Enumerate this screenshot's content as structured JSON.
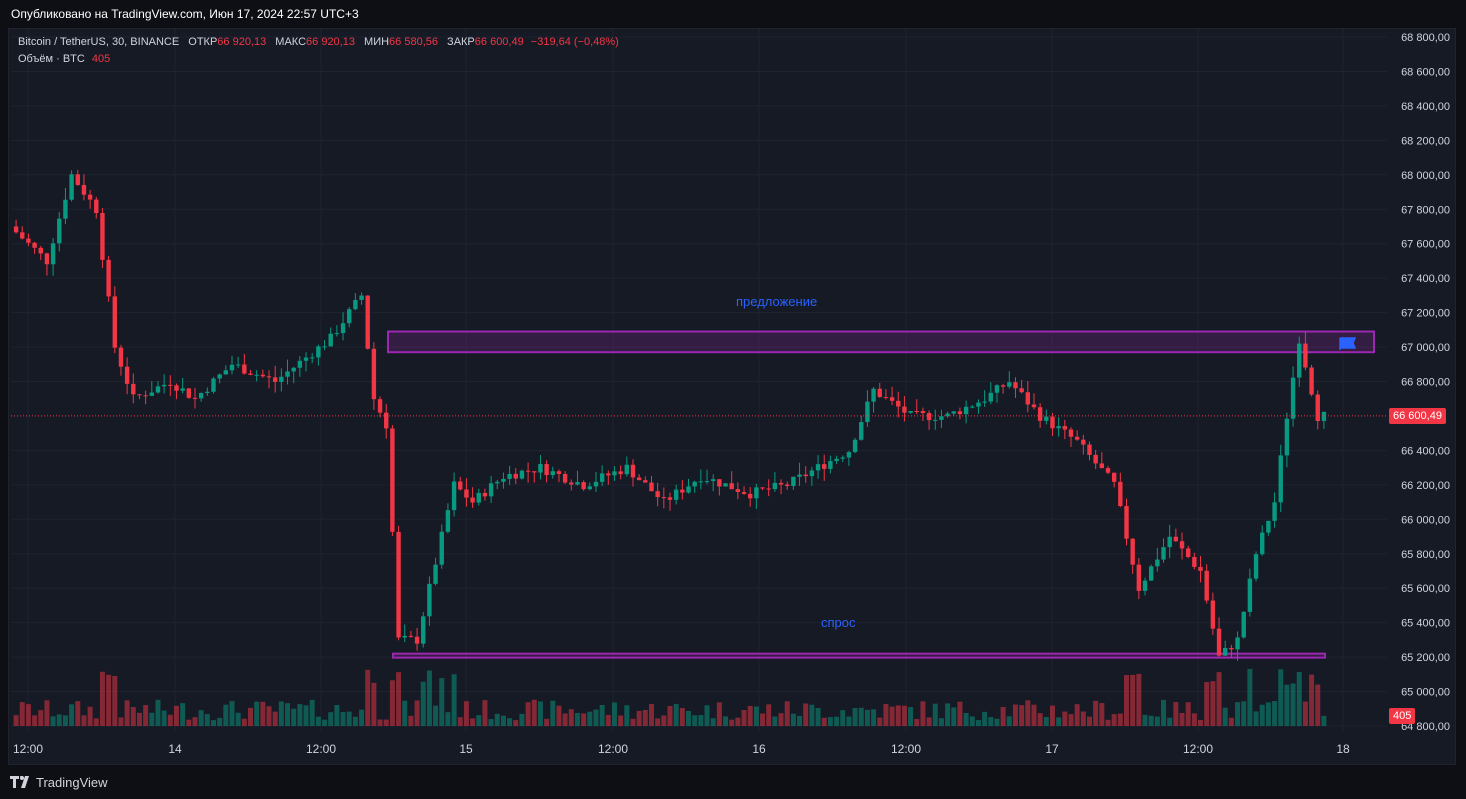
{
  "header": {
    "published": "Опубликовано на TradingView.com, Июн 17, 2024 22:57 UTC+3"
  },
  "legend": {
    "symbol": "Bitcoin / TetherUS, 30, BINANCE",
    "open_label": "ОТКР",
    "open": "66 920,13",
    "high_label": "МАКС",
    "high": "66 920,13",
    "low_label": "МИН",
    "low": "66 580,56",
    "close_label": "ЗАКР",
    "close": "66 600,49",
    "change": "−319,64 (−0,48%)",
    "volume_label": "Объём · BTC",
    "volume_value": "405"
  },
  "annotations": {
    "supply": "предложение",
    "demand": "спрос"
  },
  "price_tags": {
    "last_price": "66 600,49",
    "last_volume": "405"
  },
  "footer": {
    "brand": "TradingView"
  },
  "colors": {
    "up": "#089981",
    "down": "#f23645",
    "zone": "#9c27b0",
    "bg": "#161a25"
  },
  "chart_data": {
    "type": "candlestick",
    "y_tick_labels": [
      "68 800,00",
      "68 600,00",
      "68 400,00",
      "68 200,00",
      "68 000,00",
      "67 800,00",
      "67 600,00",
      "67 400,00",
      "67 200,00",
      "67 000,00",
      "66 800,00",
      "66 400,00",
      "66 200,00",
      "66 000,00",
      "65 800,00",
      "65 600,00",
      "65 400,00",
      "65 200,00",
      "65 000,00",
      "64 800,00"
    ],
    "y_ticks": [
      68800,
      68600,
      68400,
      68200,
      68000,
      67800,
      67600,
      67400,
      67200,
      67000,
      66800,
      66400,
      66200,
      66000,
      65800,
      65600,
      65400,
      65200,
      65000,
      64800
    ],
    "x_tick_labels": [
      "12:00",
      "14",
      "12:00",
      "15",
      "12:00",
      "16",
      "12:00",
      "17",
      "12:00",
      "18"
    ],
    "ylim": [
      64760,
      68880
    ],
    "zones": [
      {
        "label": "предложение",
        "low": 66970,
        "high": 67090
      },
      {
        "label": "спрос",
        "low": 65200,
        "high": 65220
      }
    ],
    "last_close": 66600.49,
    "keypoints": [
      [
        0,
        67700
      ],
      [
        6,
        67500
      ],
      [
        10,
        68000
      ],
      [
        14,
        67800
      ],
      [
        17,
        67000
      ],
      [
        20,
        66700
      ],
      [
        26,
        66800
      ],
      [
        30,
        66700
      ],
      [
        36,
        66900
      ],
      [
        43,
        66800
      ],
      [
        52,
        67050
      ],
      [
        57,
        67300
      ],
      [
        59,
        66700
      ],
      [
        61,
        66550
      ],
      [
        63,
        65300
      ],
      [
        66,
        65300
      ],
      [
        68,
        65600
      ],
      [
        70,
        65900
      ],
      [
        72,
        66200
      ],
      [
        75,
        66100
      ],
      [
        80,
        66250
      ],
      [
        86,
        66300
      ],
      [
        93,
        66200
      ],
      [
        100,
        66300
      ],
      [
        106,
        66100
      ],
      [
        112,
        66250
      ],
      [
        120,
        66150
      ],
      [
        126,
        66200
      ],
      [
        131,
        66300
      ],
      [
        136,
        66400
      ],
      [
        140,
        66750
      ],
      [
        146,
        66600
      ],
      [
        152,
        66600
      ],
      [
        158,
        66700
      ],
      [
        162,
        66800
      ],
      [
        167,
        66600
      ],
      [
        173,
        66450
      ],
      [
        179,
        66200
      ],
      [
        183,
        65600
      ],
      [
        188,
        65900
      ],
      [
        193,
        65700
      ],
      [
        196,
        65200
      ],
      [
        199,
        65300
      ],
      [
        202,
        65800
      ],
      [
        205,
        66100
      ],
      [
        207,
        66600
      ],
      [
        209,
        67050
      ],
      [
        212,
        66600
      ]
    ],
    "volume_max": 410
  }
}
